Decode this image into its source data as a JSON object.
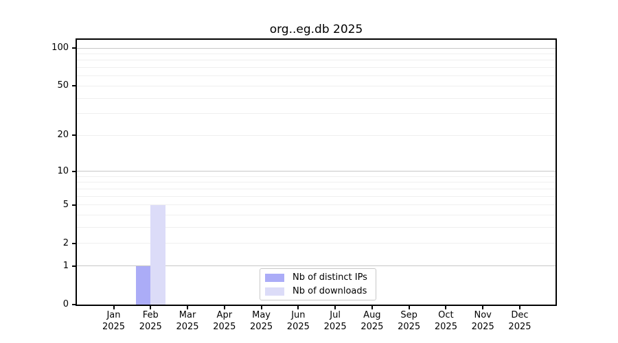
{
  "chart_data": {
    "type": "bar",
    "title": "org..eg.db 2025",
    "x": {
      "months": [
        "Jan",
        "Feb",
        "Mar",
        "Apr",
        "May",
        "Jun",
        "Jul",
        "Aug",
        "Sep",
        "Oct",
        "Nov",
        "Dec"
      ],
      "year": "2025"
    },
    "y": {
      "scale": "log1p",
      "lim": [
        0,
        100
      ],
      "ticks": [
        0,
        1,
        2,
        5,
        10,
        20,
        50,
        100
      ],
      "gridlines_major": [
        1,
        10,
        100
      ],
      "gridlines_minor": [
        2,
        3,
        4,
        5,
        6,
        7,
        8,
        9,
        20,
        30,
        40,
        50,
        60,
        70,
        80,
        90
      ]
    },
    "series": [
      {
        "name": "Nb of distinct IPs",
        "color": "#abacf7",
        "values": [
          0,
          1,
          0,
          0,
          0,
          0,
          0,
          0,
          0,
          0,
          0,
          0
        ]
      },
      {
        "name": "Nb of downloads",
        "color": "#dcdcf8",
        "values": [
          0,
          5,
          0,
          0,
          0,
          0,
          0,
          0,
          0,
          0,
          0,
          0
        ]
      }
    ],
    "legend": {
      "position": "bottom-center-inside"
    }
  },
  "colors": {
    "background": "#ffffff",
    "axis": "#000000",
    "grid_major": "#c6c6c6",
    "grid_minor": "#efefef",
    "legend_border": "#c8c8c8"
  }
}
